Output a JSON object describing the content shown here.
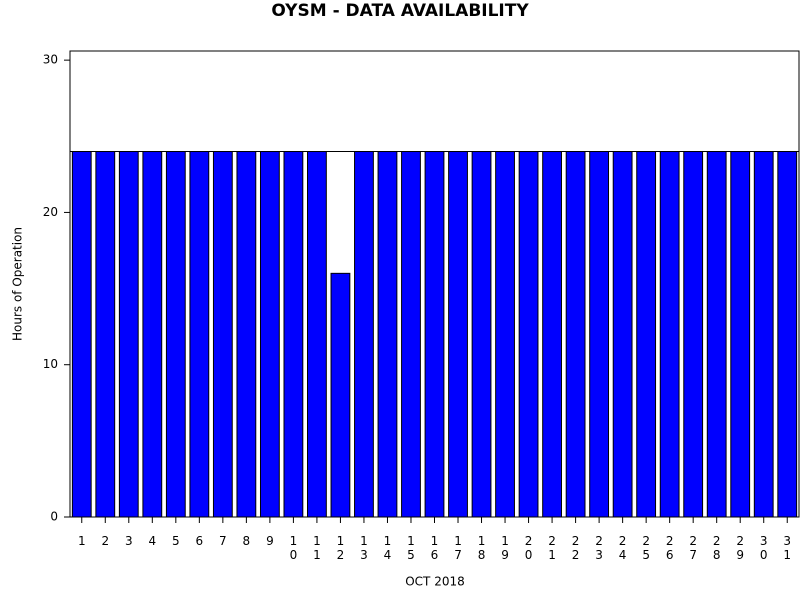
{
  "chart_data": {
    "type": "bar",
    "title": "OYSM - DATA AVAILABILITY",
    "x_label": "OCT 2018",
    "y_label": "Hours of Operation",
    "categories": [
      "1",
      "2",
      "3",
      "4",
      "5",
      "6",
      "7",
      "8",
      "9",
      "10",
      "11",
      "12",
      "13",
      "14",
      "15",
      "16",
      "17",
      "18",
      "19",
      "20",
      "21",
      "22",
      "23",
      "24",
      "25",
      "26",
      "27",
      "28",
      "29",
      "30",
      "31"
    ],
    "values": [
      24,
      24,
      24,
      24,
      24,
      24,
      24,
      24,
      24,
      24,
      24,
      16,
      24,
      24,
      24,
      24,
      24,
      24,
      24,
      24,
      24,
      24,
      24,
      24,
      24,
      24,
      24,
      24,
      24,
      24,
      24
    ],
    "color": "#0000ff",
    "reference_line": 24,
    "ylim": [
      0,
      30.6
    ],
    "yticks": [
      0,
      10,
      20,
      30
    ]
  }
}
